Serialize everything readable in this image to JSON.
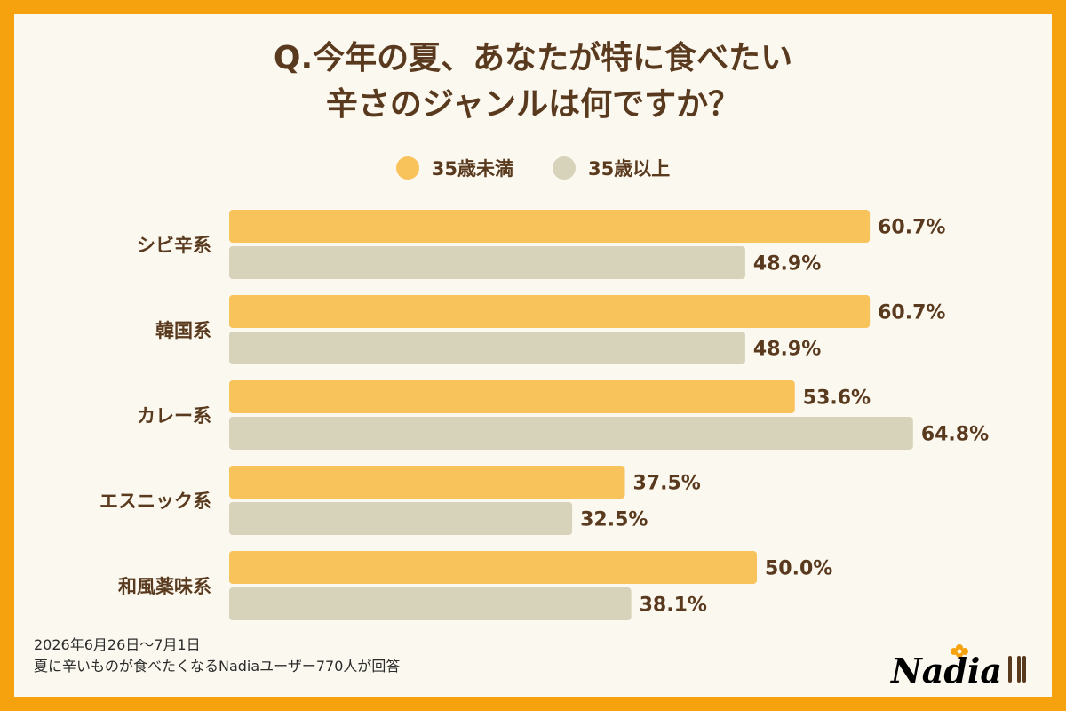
{
  "title_lines": [
    "Q.今年の夏、あなたが特に食べたい",
    "辛さのジャンルは何ですか？"
  ],
  "legend": [
    {
      "label": "35歳未満",
      "color": "#f9c35c"
    },
    {
      "label": "35歳以上",
      "color": "#d7d3bb"
    }
  ],
  "chart_data": {
    "type": "bar",
    "orientation": "horizontal",
    "categories": [
      "シビ辛系",
      "韓国系",
      "カレー系",
      "エスニック系",
      "和風薬味系"
    ],
    "series": [
      {
        "name": "35歳未満",
        "color": "#f9c35c",
        "values": [
          60.7,
          60.7,
          53.6,
          37.5,
          50.0
        ],
        "labels": [
          "60.7%",
          "60.7%",
          "53.6%",
          "37.5%",
          "50.0%"
        ]
      },
      {
        "name": "35歳以上",
        "color": "#d7d3bb",
        "values": [
          48.9,
          48.9,
          64.8,
          32.5,
          38.1
        ],
        "labels": [
          "48.9%",
          "48.9%",
          "64.8%",
          "32.5%",
          "38.1%"
        ]
      }
    ],
    "xlim": [
      0,
      100
    ],
    "grid": false,
    "legend_position": "top-center"
  },
  "footnote": {
    "line1": "2026年6月26日～7月1日",
    "line2": "夏に辛いものが食べたくなるNadiaユーザー770人が回答"
  },
  "logo": {
    "text": "Nadia"
  }
}
